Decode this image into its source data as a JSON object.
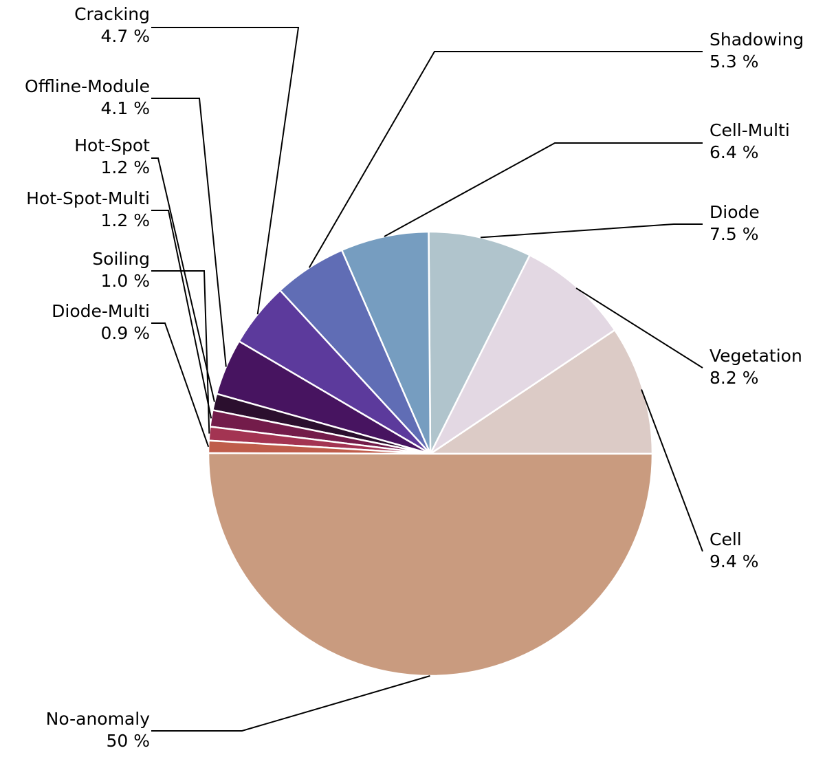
{
  "chart_data": {
    "type": "pie",
    "title": "",
    "slices": [
      {
        "label": "Cell",
        "value": 9.4,
        "display": "9.4 %",
        "color": "#dccbc6"
      },
      {
        "label": "Vegetation",
        "value": 8.2,
        "display": "8.2 %",
        "color": "#e3d8e3"
      },
      {
        "label": "Diode",
        "value": 7.5,
        "display": "7.5 %",
        "color": "#b0c4cc"
      },
      {
        "label": "Cell-Multi",
        "value": 6.4,
        "display": "6.4 %",
        "color": "#769dc0"
      },
      {
        "label": "Shadowing",
        "value": 5.3,
        "display": "5.3 %",
        "color": "#606db5"
      },
      {
        "label": "Cracking",
        "value": 4.7,
        "display": "4.7 %",
        "color": "#5c3a9c"
      },
      {
        "label": "Offline-Module",
        "value": 4.1,
        "display": "4.1 %",
        "color": "#471460"
      },
      {
        "label": "Hot-Spot",
        "value": 1.2,
        "display": "1.2 %",
        "color": "#2b0f2e"
      },
      {
        "label": "Hot-Spot-Multi",
        "value": 1.2,
        "display": "1.2 %",
        "color": "#731c4a"
      },
      {
        "label": "Soiling",
        "value": 1.0,
        "display": "1.0 %",
        "color": "#a33452"
      },
      {
        "label": "Diode-Multi",
        "value": 0.9,
        "display": "0.9 %",
        "color": "#bf5d4b"
      },
      {
        "label": "No-anomaly",
        "value": 50,
        "display": "50 %",
        "color": "#c99b7f"
      }
    ],
    "direction": "counterclockwise",
    "start_angle_deg": 0,
    "legend": "none",
    "labels": "outside with leader lines"
  }
}
